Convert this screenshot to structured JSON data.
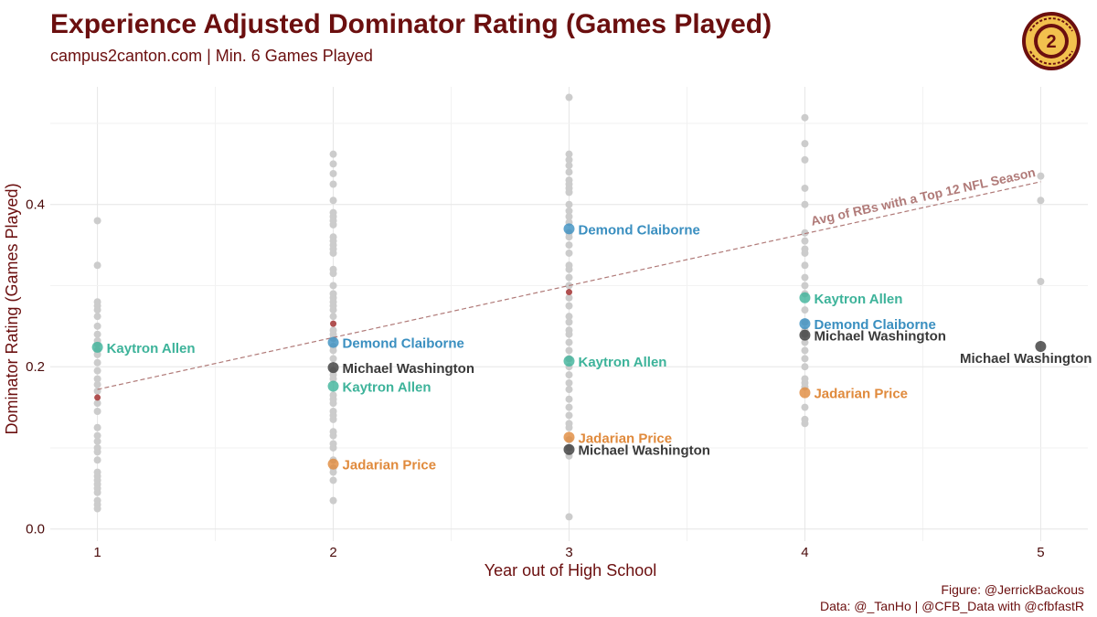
{
  "header": {
    "title": "Experience Adjusted Dominator Rating (Games Played)",
    "subtitle": "campus2canton.com | Min. 6 Games Played"
  },
  "logo": {
    "icon": "campus2canton-logo-icon",
    "text": "CAMPUS 2 CANTON",
    "colors": {
      "ring": "#6b0f0f",
      "fill": "#f2c14e"
    }
  },
  "caption": {
    "line1": "Figure: @JerrickBackous",
    "line2": "Data: @_TanHo | @CFB_Data with @cfbfastR"
  },
  "chart_data": {
    "type": "scatter",
    "title": "Experience Adjusted Dominator Rating (Games Played)",
    "subtitle": "campus2canton.com | Min. 6 Games Played",
    "xlabel": "Year out of High School",
    "ylabel": "Dominator Rating (Games Played)",
    "x_ticks": [
      1,
      2,
      3,
      4,
      5
    ],
    "y_ticks": [
      0.0,
      0.2,
      0.4
    ],
    "y_tick_labels": [
      "0.0",
      "0.2",
      "0.4"
    ],
    "xlim": [
      0.8,
      5.2
    ],
    "ylim": [
      -0.015,
      0.545
    ],
    "grid": true,
    "colors": {
      "background_points": "#cccccc",
      "reference_points": "#b05050",
      "reference_line": "#b07a78",
      "Kaytron Allen": "#3db39a",
      "Demond Claiborne": "#3a8fc0",
      "Michael Washington": "#3a3a3a",
      "Jadarian Price": "#e08a3c"
    },
    "background": [
      {
        "x": 1,
        "y": [
          0.38,
          0.325,
          0.28,
          0.275,
          0.27,
          0.262,
          0.25,
          0.24,
          0.232,
          0.228,
          0.22,
          0.215,
          0.205,
          0.195,
          0.185,
          0.178,
          0.17,
          0.155,
          0.145,
          0.125,
          0.115,
          0.108,
          0.1,
          0.095,
          0.085,
          0.07,
          0.065,
          0.06,
          0.055,
          0.05,
          0.045,
          0.035,
          0.03,
          0.025
        ]
      },
      {
        "x": 2,
        "y": [
          0.462,
          0.45,
          0.438,
          0.425,
          0.405,
          0.39,
          0.385,
          0.38,
          0.375,
          0.36,
          0.355,
          0.35,
          0.345,
          0.34,
          0.32,
          0.315,
          0.3,
          0.29,
          0.285,
          0.28,
          0.275,
          0.27,
          0.262,
          0.245,
          0.24,
          0.235,
          0.225,
          0.22,
          0.21,
          0.195,
          0.19,
          0.185,
          0.165,
          0.16,
          0.155,
          0.145,
          0.14,
          0.135,
          0.12,
          0.115,
          0.105,
          0.1,
          0.085,
          0.075,
          0.07,
          0.06,
          0.035
        ]
      },
      {
        "x": 3,
        "y": [
          0.532,
          0.462,
          0.455,
          0.448,
          0.44,
          0.43,
          0.425,
          0.42,
          0.415,
          0.4,
          0.392,
          0.385,
          0.378,
          0.365,
          0.36,
          0.35,
          0.34,
          0.325,
          0.32,
          0.31,
          0.3,
          0.285,
          0.275,
          0.262,
          0.255,
          0.245,
          0.24,
          0.23,
          0.22,
          0.21,
          0.2,
          0.19,
          0.18,
          0.172,
          0.16,
          0.15,
          0.14,
          0.13,
          0.125,
          0.11,
          0.1,
          0.09,
          0.015
        ]
      },
      {
        "x": 4,
        "y": [
          0.507,
          0.475,
          0.455,
          0.42,
          0.4,
          0.365,
          0.355,
          0.345,
          0.34,
          0.325,
          0.31,
          0.3,
          0.29,
          0.27,
          0.255,
          0.245,
          0.24,
          0.23,
          0.22,
          0.21,
          0.2,
          0.185,
          0.18,
          0.175,
          0.15,
          0.135,
          0.13
        ]
      },
      {
        "x": 5,
        "y": [
          0.435,
          0.405,
          0.305
        ]
      }
    ],
    "reference_points": [
      {
        "x": 1,
        "y": 0.162
      },
      {
        "x": 2,
        "y": 0.253
      },
      {
        "x": 3,
        "y": 0.292
      }
    ],
    "reference_line": {
      "label": "Avg of RBs with a Top 12 NFL Season",
      "x": [
        1,
        5
      ],
      "y": [
        0.172,
        0.428
      ]
    },
    "series": [
      {
        "name": "Kaytron Allen",
        "points": [
          {
            "x": 1,
            "y": 0.224
          },
          {
            "x": 2,
            "y": 0.176
          },
          {
            "x": 3,
            "y": 0.207
          },
          {
            "x": 4,
            "y": 0.285
          }
        ]
      },
      {
        "name": "Demond Claiborne",
        "points": [
          {
            "x": 2,
            "y": 0.23
          },
          {
            "x": 3,
            "y": 0.37
          },
          {
            "x": 4,
            "y": 0.253
          }
        ]
      },
      {
        "name": "Michael Washington",
        "points": [
          {
            "x": 2,
            "y": 0.199
          },
          {
            "x": 3,
            "y": 0.098
          },
          {
            "x": 4,
            "y": 0.239
          },
          {
            "x": 5,
            "y": 0.225
          }
        ]
      },
      {
        "name": "Jadarian Price",
        "points": [
          {
            "x": 2,
            "y": 0.08
          },
          {
            "x": 3,
            "y": 0.113
          },
          {
            "x": 4,
            "y": 0.168
          }
        ]
      }
    ]
  }
}
